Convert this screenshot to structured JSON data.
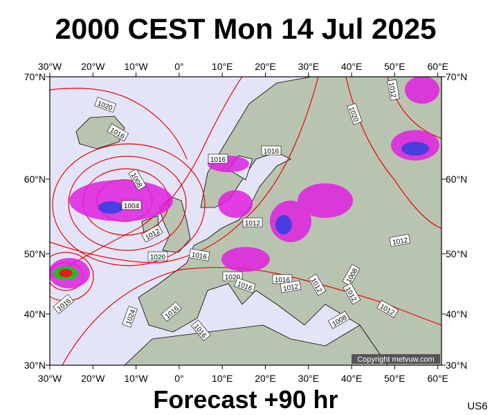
{
  "header": {
    "title": "2000 CEST Mon 14 Jul 2025"
  },
  "map": {
    "lon_labels": [
      "30°W",
      "20°W",
      "10°W",
      "0°",
      "10°E",
      "20°E",
      "30°E",
      "40°E",
      "50°E",
      "60°E"
    ],
    "lat_labels": [
      "70°N",
      "60°N",
      "50°N",
      "40°N",
      "30°N"
    ],
    "isobar_labels": [
      1020,
      1016,
      1008,
      1004,
      1012,
      1016,
      1016,
      1020,
      1012,
      1012,
      1012,
      1020,
      1016,
      1020,
      1016,
      1016,
      1012,
      1012,
      1008,
      1012,
      1012,
      1016,
      1024,
      1016,
      1016,
      1008
    ],
    "copyright": "Copyright metvuw.com"
  },
  "footer": {
    "forecast": "Forecast +90 hr",
    "code": "US6"
  }
}
